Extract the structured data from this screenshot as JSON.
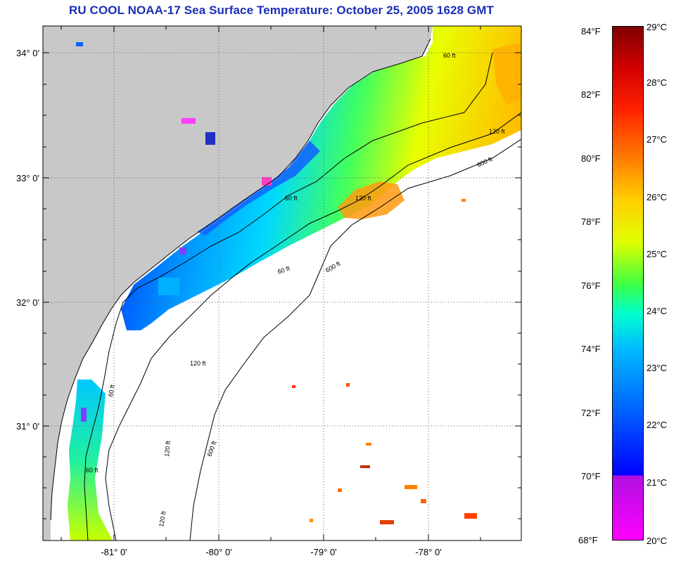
{
  "title": "RU COOL  NOAA-17  Sea Surface Temperature:  October 25, 2005 1628 GMT",
  "colors": {
    "land": "#c8c8c8",
    "ocean_no_data": "#ffffff",
    "title": "#1a2fb5",
    "contour": "#000000"
  },
  "map": {
    "lat_labels": [
      "34° 0'",
      "33° 0'",
      "32° 0'",
      "31° 0'"
    ],
    "lon_labels": [
      "-81° 0'",
      "-80° 0'",
      "-79° 0'",
      "-78° 0'"
    ],
    "contour_labels": [
      "60 ft",
      "120 ft",
      "600 ft",
      "60 ft",
      "120 ft",
      "600 ft",
      "60 ft",
      "120 ft",
      "600 ft",
      "60 ft",
      "120 ft",
      "120 ft",
      "60 ft"
    ],
    "gridlines": "dotted"
  },
  "colorbar": {
    "fahrenheit_labels": [
      "84°F",
      "82°F",
      "80°F",
      "78°F",
      "76°F",
      "74°F",
      "72°F",
      "70°F",
      "68°F"
    ],
    "celsius_labels": [
      "29°C",
      "28°C",
      "27°C",
      "26°C",
      "25°C",
      "24°C",
      "23°C",
      "22°C",
      "21°C",
      "20°C"
    ]
  }
}
